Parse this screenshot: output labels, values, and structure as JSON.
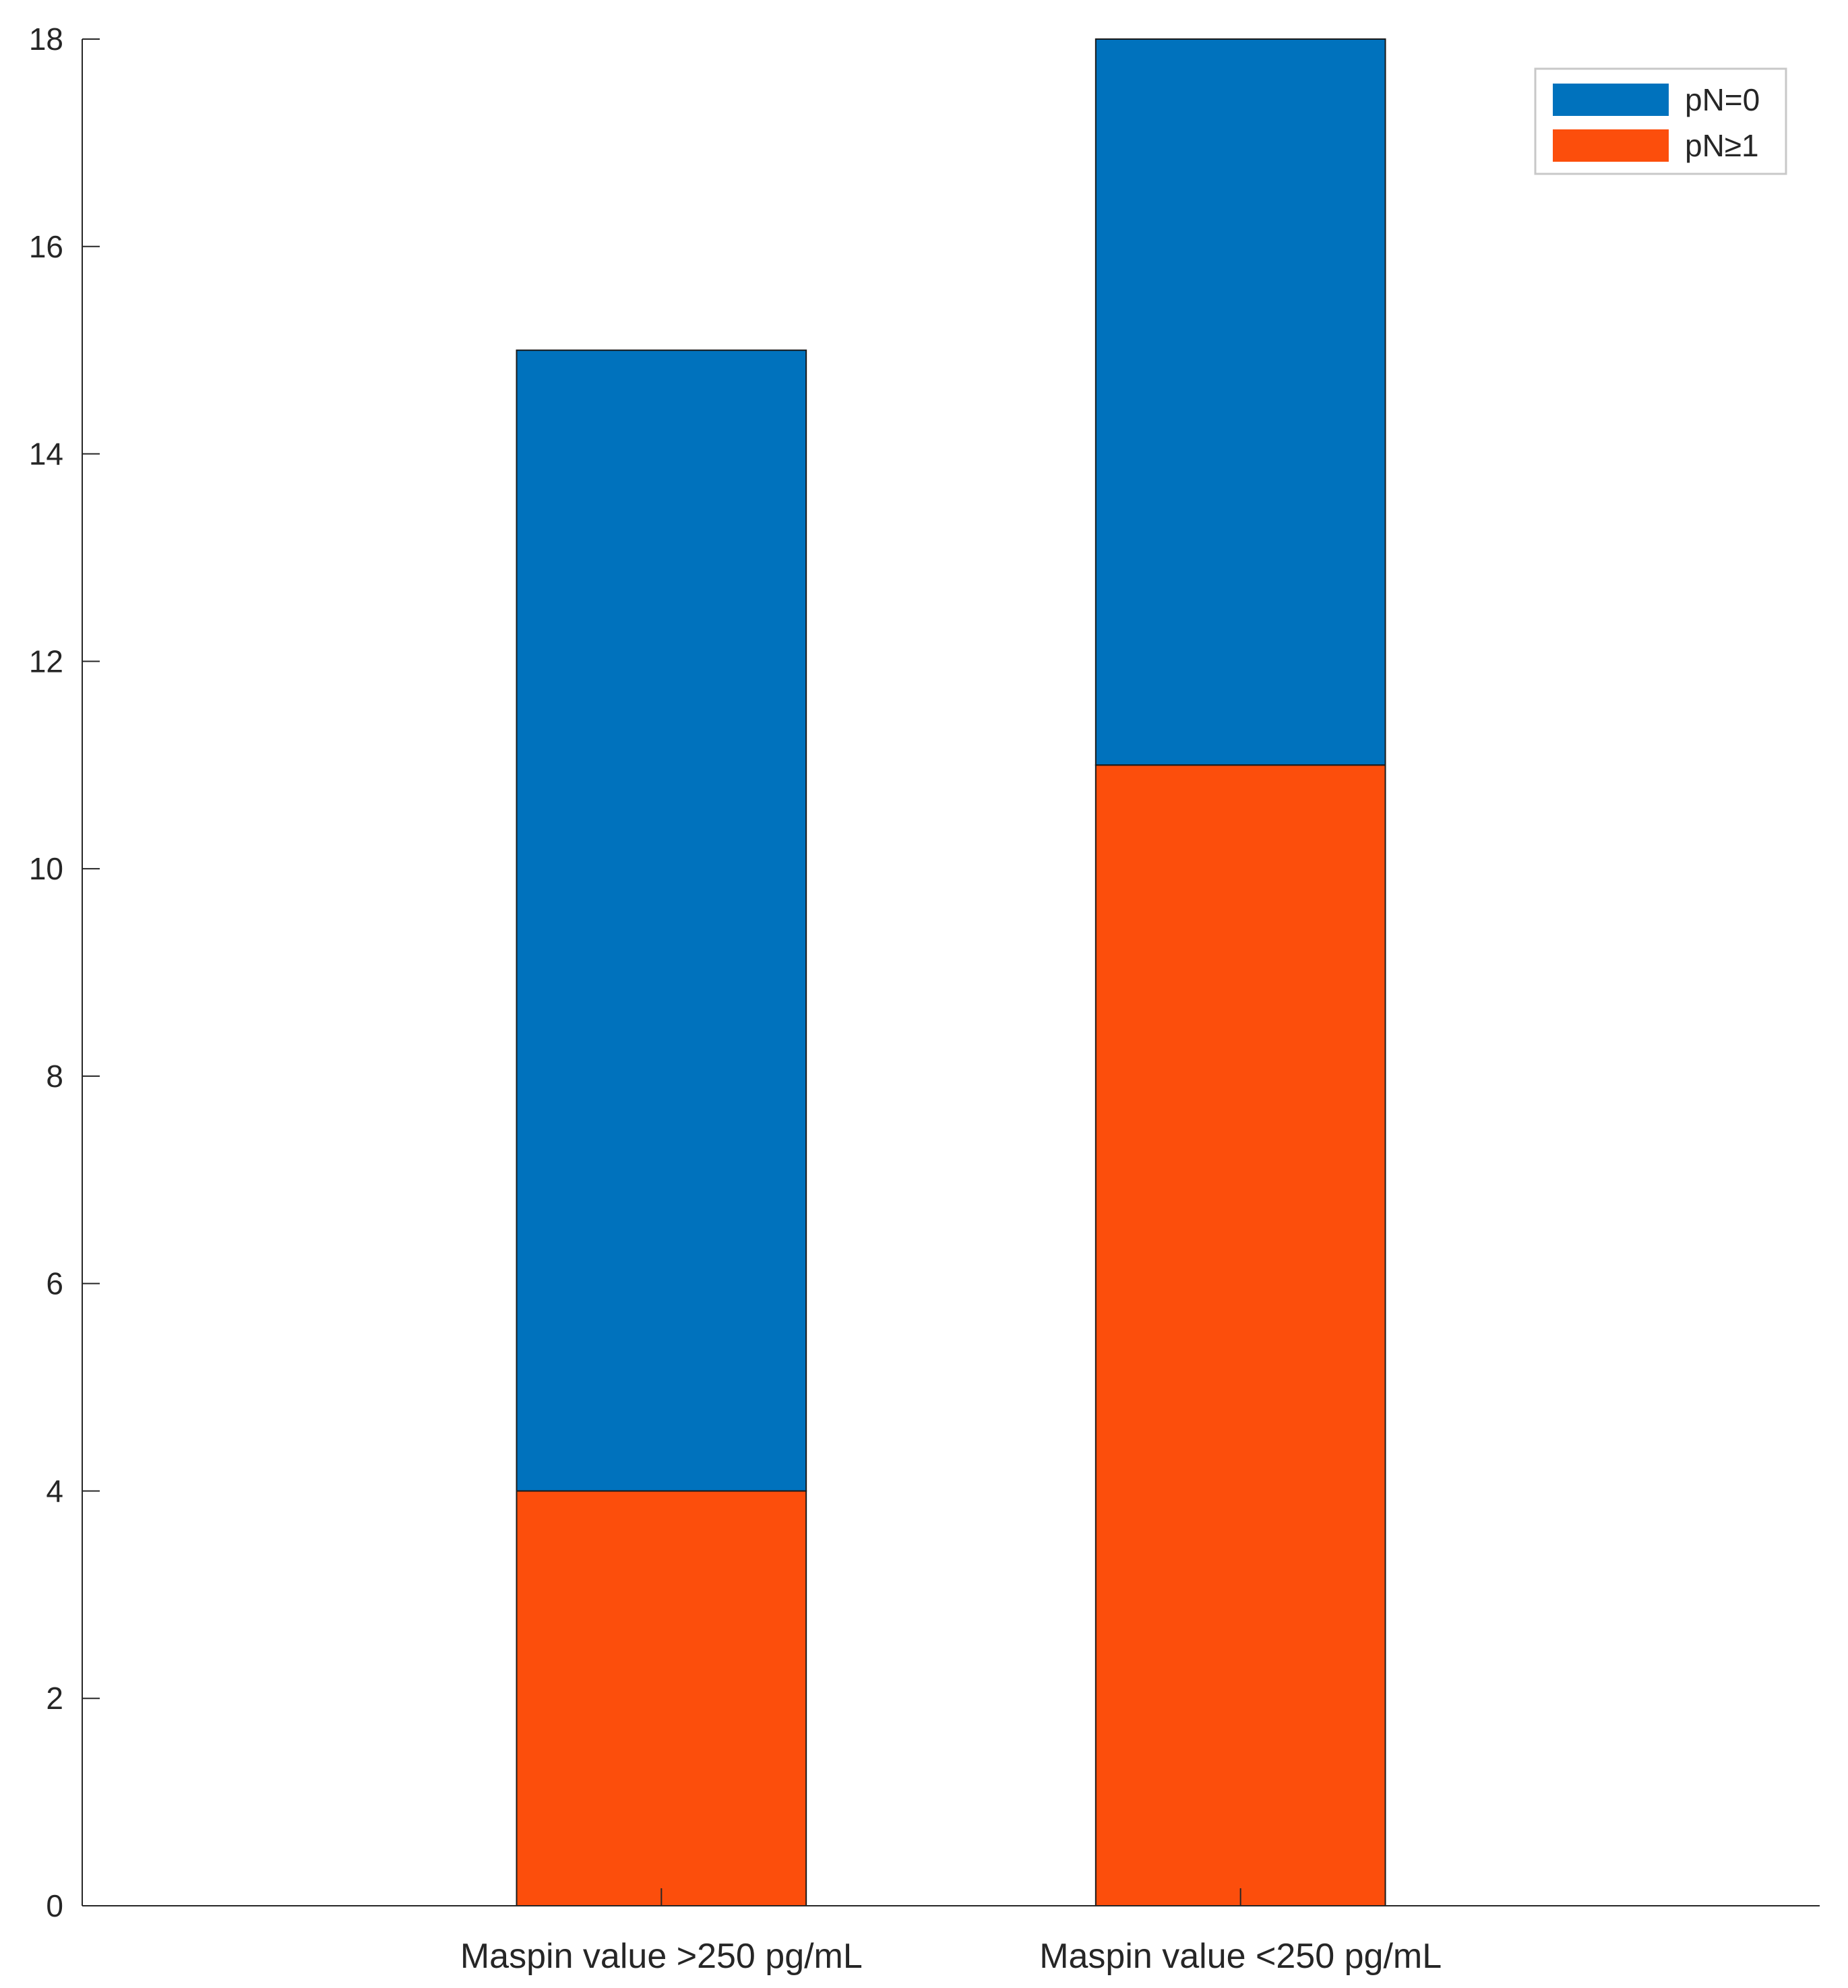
{
  "chart_data": {
    "type": "bar",
    "stacked": true,
    "categories": [
      "Maspin value >250 pg/mL",
      "Maspin value <250 pg/mL"
    ],
    "series": [
      {
        "name": "pN≥1",
        "values": [
          4,
          11
        ],
        "color": "#FC4E0C"
      },
      {
        "name": "pN=0",
        "values": [
          11,
          7
        ],
        "color": "#0072BD"
      }
    ],
    "legend_order": [
      "pN=0",
      "pN≥1"
    ],
    "legend_position": "top-right",
    "xlim": [
      0.5,
      3.5
    ],
    "category_x": [
      1.5,
      2.5
    ],
    "bar_width": 0.5,
    "ylim": [
      0,
      18
    ],
    "yticks": [
      0,
      2,
      4,
      6,
      8,
      10,
      12,
      14,
      16,
      18
    ],
    "grid": false,
    "title": "",
    "xlabel": "",
    "ylabel": ""
  }
}
